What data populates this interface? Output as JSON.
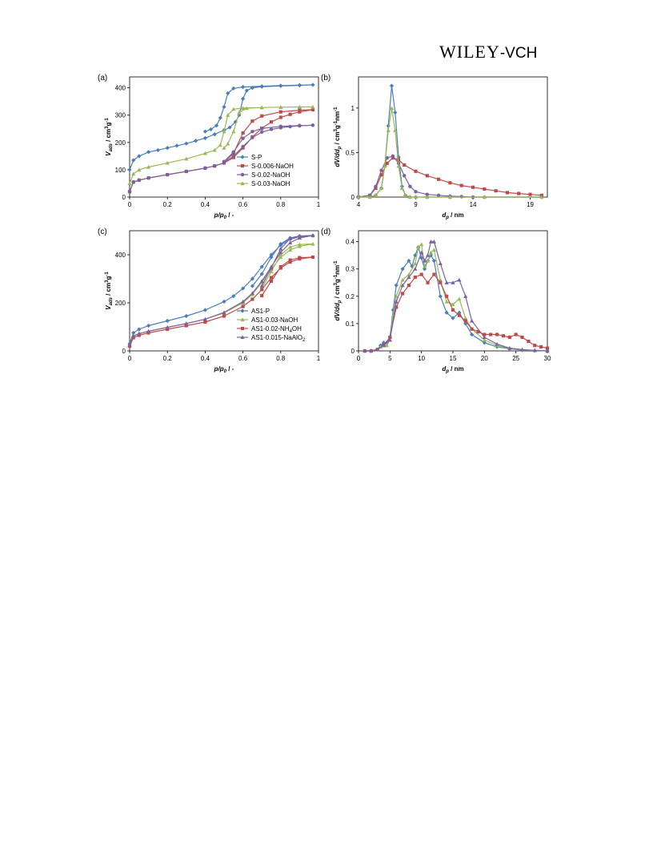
{
  "header": {
    "logo_main": "WILEY",
    "logo_suffix": "-VCH"
  },
  "colors": {
    "S-P": "#4a7ebb",
    "S-0.006-NaOH": "#be4b48",
    "S-0.02-NaOH": "#7d60a0",
    "S-0.03-NaOH": "#98b954"
  },
  "chart_data": [
    {
      "panel": "(a)",
      "type": "line",
      "xlabel": "p/p0 / -",
      "ylabel": "Vads / cm3g-1",
      "xlim": [
        0,
        1
      ],
      "ylim": [
        0,
        440
      ],
      "xticks": [
        0,
        0.2,
        0.4,
        0.6,
        0.8,
        1
      ],
      "xtick_labels": [
        "0",
        "0.2",
        "0.4",
        "0.6",
        "0.8",
        "1"
      ],
      "yticks": [
        0,
        100,
        200,
        300,
        400
      ],
      "ytick_labels": [
        "0",
        "100",
        "200",
        "300",
        "400"
      ],
      "legend": {
        "position": "bottom-right"
      },
      "series": [
        {
          "name": "S-P",
          "color": "#4a7ebb",
          "marker": "diamond",
          "x": [
            0,
            0.02,
            0.05,
            0.1,
            0.15,
            0.2,
            0.25,
            0.3,
            0.35,
            0.4,
            0.45,
            0.5,
            0.53,
            0.56,
            0.58,
            0.6,
            0.62,
            0.65,
            0.7,
            0.8,
            0.9,
            0.97,
            0.9,
            0.8,
            0.7,
            0.6,
            0.55,
            0.52,
            0.5,
            0.48,
            0.46,
            0.43,
            0.4
          ],
          "y": [
            100,
            135,
            150,
            165,
            172,
            180,
            188,
            196,
            206,
            216,
            230,
            245,
            255,
            275,
            300,
            360,
            390,
            400,
            404,
            407,
            409,
            411,
            410,
            408,
            406,
            403,
            398,
            380,
            330,
            290,
            262,
            248,
            240
          ]
        },
        {
          "name": "S-0.006-NaOH",
          "color": "#be4b48",
          "marker": "square",
          "x": [
            0,
            0.02,
            0.05,
            0.1,
            0.2,
            0.3,
            0.4,
            0.45,
            0.5,
            0.55,
            0.6,
            0.65,
            0.7,
            0.75,
            0.8,
            0.85,
            0.9,
            0.97,
            0.9,
            0.8,
            0.7,
            0.65,
            0.6,
            0.55,
            0.5
          ],
          "y": [
            20,
            55,
            62,
            70,
            82,
            94,
            106,
            114,
            125,
            145,
            180,
            220,
            252,
            275,
            292,
            303,
            312,
            320,
            318,
            312,
            297,
            278,
            235,
            160,
            128
          ]
        },
        {
          "name": "S-0.02-NaOH",
          "color": "#7d60a0",
          "marker": "circle",
          "x": [
            0,
            0.02,
            0.05,
            0.1,
            0.2,
            0.3,
            0.4,
            0.45,
            0.5,
            0.55,
            0.6,
            0.65,
            0.7,
            0.75,
            0.8,
            0.85,
            0.9,
            0.97,
            0.9,
            0.8,
            0.7,
            0.65,
            0.6,
            0.55,
            0.5
          ],
          "y": [
            20,
            55,
            62,
            70,
            82,
            94,
            106,
            114,
            125,
            150,
            185,
            218,
            238,
            248,
            254,
            258,
            261,
            263,
            262,
            259,
            251,
            240,
            215,
            165,
            130
          ]
        },
        {
          "name": "S-0.03-NaOH",
          "color": "#98b954",
          "marker": "triangle",
          "x": [
            0,
            0.02,
            0.05,
            0.1,
            0.2,
            0.3,
            0.4,
            0.45,
            0.48,
            0.5,
            0.52,
            0.55,
            0.6,
            0.7,
            0.8,
            0.9,
            0.97,
            0.9,
            0.8,
            0.7,
            0.62,
            0.58,
            0.55,
            0.52,
            0.5
          ],
          "y": [
            50,
            85,
            100,
            110,
            125,
            140,
            160,
            172,
            190,
            240,
            300,
            322,
            326,
            328,
            329,
            330,
            330,
            330,
            329,
            328,
            325,
            310,
            240,
            195,
            180
          ]
        }
      ]
    },
    {
      "panel": "(b)",
      "type": "line",
      "xlabel": "dp / nm",
      "ylabel": "dV/ddp / cm3g-1nm-1",
      "xlim": [
        4,
        20.5
      ],
      "ylim": [
        0,
        1.35
      ],
      "xticks": [
        4,
        9,
        14,
        19
      ],
      "xtick_labels": [
        "4",
        "9",
        "14",
        "19"
      ],
      "yticks": [
        0,
        0.5,
        1
      ],
      "ytick_labels": [
        "0",
        "0.5",
        "1"
      ],
      "series": [
        {
          "name": "S-P",
          "color": "#4a7ebb",
          "marker": "diamond",
          "x": [
            4,
            5,
            5.5,
            6,
            6.3,
            6.6,
            6.9,
            7.2,
            7.5,
            7.8,
            8.1,
            8.5,
            9,
            10,
            12,
            15,
            20
          ],
          "y": [
            0,
            0,
            0.02,
            0.1,
            0.35,
            0.8,
            1.25,
            0.95,
            0.45,
            0.12,
            0.02,
            0,
            0,
            0,
            0,
            0,
            0
          ]
        },
        {
          "name": "S-0.006-NaOH",
          "color": "#be4b48",
          "marker": "square",
          "x": [
            4,
            5,
            5.5,
            6,
            6.5,
            7,
            7.5,
            8,
            9,
            10,
            11,
            12,
            13,
            14,
            15,
            16,
            17,
            18,
            19,
            20
          ],
          "y": [
            0,
            0.02,
            0.1,
            0.25,
            0.38,
            0.44,
            0.42,
            0.36,
            0.29,
            0.24,
            0.2,
            0.16,
            0.13,
            0.11,
            0.09,
            0.07,
            0.05,
            0.04,
            0.03,
            0.02
          ]
        },
        {
          "name": "S-0.02-NaOH",
          "color": "#7d60a0",
          "marker": "circle",
          "x": [
            4,
            5,
            5.5,
            6,
            6.5,
            7,
            7.5,
            8,
            8.5,
            9,
            10,
            11,
            12,
            13,
            14,
            20
          ],
          "y": [
            0,
            0.02,
            0.12,
            0.3,
            0.44,
            0.46,
            0.38,
            0.24,
            0.12,
            0.06,
            0.03,
            0.02,
            0.01,
            0.005,
            0,
            0
          ]
        },
        {
          "name": "S-0.03-NaOH",
          "color": "#98b954",
          "marker": "triangle",
          "x": [
            4,
            5,
            5.5,
            6,
            6.3,
            6.6,
            6.9,
            7.2,
            7.5,
            7.8,
            8.1,
            8.5,
            9,
            10,
            12,
            15,
            20
          ],
          "y": [
            0,
            0,
            0.02,
            0.1,
            0.35,
            0.75,
            1.0,
            0.75,
            0.35,
            0.1,
            0.02,
            0,
            0,
            0,
            0,
            0,
            0
          ]
        }
      ]
    },
    {
      "panel": "(c)",
      "type": "line",
      "xlabel": "p/p0 / -",
      "ylabel": "Vads / cm3g-1",
      "xlim": [
        0,
        1
      ],
      "ylim": [
        0,
        500
      ],
      "xticks": [
        0,
        0.2,
        0.4,
        0.6,
        0.8,
        1
      ],
      "xtick_labels": [
        "0",
        "0.2",
        "0.4",
        "0.6",
        "0.8",
        "1"
      ],
      "yticks": [
        0,
        200,
        400
      ],
      "ytick_labels": [
        "0",
        "200",
        "400"
      ],
      "legend": {
        "position": "bottom-right"
      },
      "series": [
        {
          "name": "AS1-P",
          "color": "#4a7ebb",
          "marker": "diamond",
          "x": [
            0,
            0.02,
            0.05,
            0.1,
            0.2,
            0.3,
            0.4,
            0.5,
            0.55,
            0.6,
            0.65,
            0.7,
            0.75,
            0.8,
            0.85,
            0.9,
            0.97,
            0.9,
            0.85,
            0.8,
            0.75,
            0.7,
            0.65
          ],
          "y": [
            30,
            75,
            90,
            105,
            125,
            145,
            170,
            205,
            228,
            260,
            300,
            350,
            400,
            440,
            465,
            475,
            480,
            478,
            470,
            445,
            390,
            320,
            270
          ]
        },
        {
          "name": "AS1-0.03-NaOH",
          "color": "#98b954",
          "marker": "triangle",
          "x": [
            0,
            0.02,
            0.05,
            0.1,
            0.2,
            0.3,
            0.4,
            0.5,
            0.6,
            0.65,
            0.7,
            0.75,
            0.8,
            0.85,
            0.9,
            0.97,
            0.9,
            0.85,
            0.8,
            0.75,
            0.7
          ],
          "y": [
            25,
            62,
            72,
            82,
            98,
            114,
            132,
            158,
            200,
            235,
            285,
            340,
            390,
            420,
            435,
            445,
            443,
            432,
            400,
            330,
            260
          ]
        },
        {
          "name": "AS1-0.02-NH4OH",
          "color": "#be4b48",
          "marker": "square",
          "x": [
            0,
            0.02,
            0.05,
            0.1,
            0.2,
            0.3,
            0.4,
            0.5,
            0.6,
            0.65,
            0.7,
            0.75,
            0.8,
            0.85,
            0.9,
            0.97,
            0.9,
            0.85,
            0.8,
            0.75,
            0.7
          ],
          "y": [
            20,
            55,
            65,
            75,
            90,
            105,
            120,
            145,
            185,
            215,
            255,
            305,
            345,
            370,
            383,
            390,
            388,
            378,
            350,
            290,
            230
          ]
        },
        {
          "name": "AS1-0.015-NaAlO2",
          "color": "#7d60a0",
          "marker": "triangle",
          "x": [
            0,
            0.02,
            0.05,
            0.1,
            0.2,
            0.3,
            0.4,
            0.5,
            0.6,
            0.65,
            0.7,
            0.75,
            0.8,
            0.85,
            0.9,
            0.97,
            0.9,
            0.85,
            0.8,
            0.75,
            0.7
          ],
          "y": [
            25,
            62,
            72,
            82,
            98,
            114,
            132,
            160,
            205,
            240,
            290,
            350,
            410,
            450,
            470,
            480,
            478,
            468,
            425,
            345,
            270
          ]
        }
      ]
    },
    {
      "panel": "(d)",
      "type": "line",
      "xlabel": "dp / nm",
      "ylabel": "dV/ddp / cm3g-1nm-1",
      "xlim": [
        0,
        30
      ],
      "ylim": [
        0,
        0.44
      ],
      "xticks": [
        0,
        5,
        10,
        15,
        20,
        25,
        30
      ],
      "xtick_labels": [
        "0",
        "5",
        "10",
        "15",
        "20",
        "25",
        "30"
      ],
      "yticks": [
        0,
        0.1,
        0.2,
        0.3,
        0.4
      ],
      "ytick_labels": [
        "0",
        "0.1",
        "0.2",
        "0.3",
        "0.4"
      ],
      "series": [
        {
          "name": "AS1-P",
          "color": "#4a7ebb",
          "marker": "diamond",
          "x": [
            1,
            2,
            3,
            3.5,
            4,
            4.5,
            5,
            5.5,
            6,
            7,
            8,
            8.5,
            9,
            9.5,
            10,
            10.5,
            11,
            11.5,
            12,
            13,
            14,
            15,
            16,
            17,
            18,
            20,
            22,
            24,
            26,
            28,
            30
          ],
          "y": [
            0,
            0,
            0.005,
            0.02,
            0.03,
            0.03,
            0.05,
            0.15,
            0.24,
            0.3,
            0.33,
            0.31,
            0.35,
            0.38,
            0.34,
            0.3,
            0.33,
            0.35,
            0.33,
            0.2,
            0.14,
            0.12,
            0.14,
            0.1,
            0.06,
            0.03,
            0.015,
            0.008,
            0.003,
            0.001,
            0
          ]
        },
        {
          "name": "AS1-0.03-NaOH",
          "color": "#98b954",
          "marker": "triangle",
          "x": [
            1,
            2,
            3,
            3.5,
            4,
            4.5,
            5,
            5.5,
            6,
            7,
            8,
            9,
            9.5,
            10,
            10.5,
            11,
            11.5,
            12,
            13,
            14,
            15,
            16,
            17,
            18,
            20,
            22,
            24,
            26,
            28,
            30
          ],
          "y": [
            0,
            0,
            0.005,
            0.015,
            0.02,
            0.02,
            0.04,
            0.13,
            0.2,
            0.26,
            0.28,
            0.32,
            0.38,
            0.39,
            0.31,
            0.33,
            0.36,
            0.37,
            0.26,
            0.18,
            0.17,
            0.19,
            0.12,
            0.08,
            0.04,
            0.02,
            0.01,
            0.004,
            0.002,
            0
          ]
        },
        {
          "name": "AS1-0.02-NH4OH",
          "color": "#be4b48",
          "marker": "square",
          "x": [
            1,
            2,
            3,
            4,
            5,
            6,
            7,
            8,
            9,
            10,
            11,
            12,
            13,
            14,
            15,
            16,
            17,
            18,
            19,
            20,
            21,
            22,
            23,
            24,
            25,
            26,
            27,
            28,
            29,
            30
          ],
          "y": [
            0,
            0,
            0.005,
            0.02,
            0.05,
            0.16,
            0.21,
            0.24,
            0.27,
            0.28,
            0.25,
            0.28,
            0.25,
            0.2,
            0.15,
            0.13,
            0.11,
            0.08,
            0.07,
            0.06,
            0.06,
            0.06,
            0.055,
            0.05,
            0.06,
            0.05,
            0.035,
            0.02,
            0.015,
            0.01
          ]
        },
        {
          "name": "AS1-0.015-NaAlO2",
          "color": "#7d60a0",
          "marker": "triangle",
          "x": [
            1,
            2,
            3,
            4,
            5,
            6,
            7,
            8,
            9,
            10,
            10.5,
            11,
            11.5,
            12,
            13,
            14,
            15,
            16,
            17,
            18,
            20,
            22,
            24,
            26,
            28,
            30
          ],
          "y": [
            0,
            0,
            0.005,
            0.02,
            0.04,
            0.18,
            0.24,
            0.27,
            0.3,
            0.36,
            0.33,
            0.35,
            0.4,
            0.4,
            0.32,
            0.25,
            0.25,
            0.26,
            0.2,
            0.11,
            0.05,
            0.025,
            0.01,
            0.005,
            0.002,
            0
          ]
        }
      ]
    }
  ]
}
